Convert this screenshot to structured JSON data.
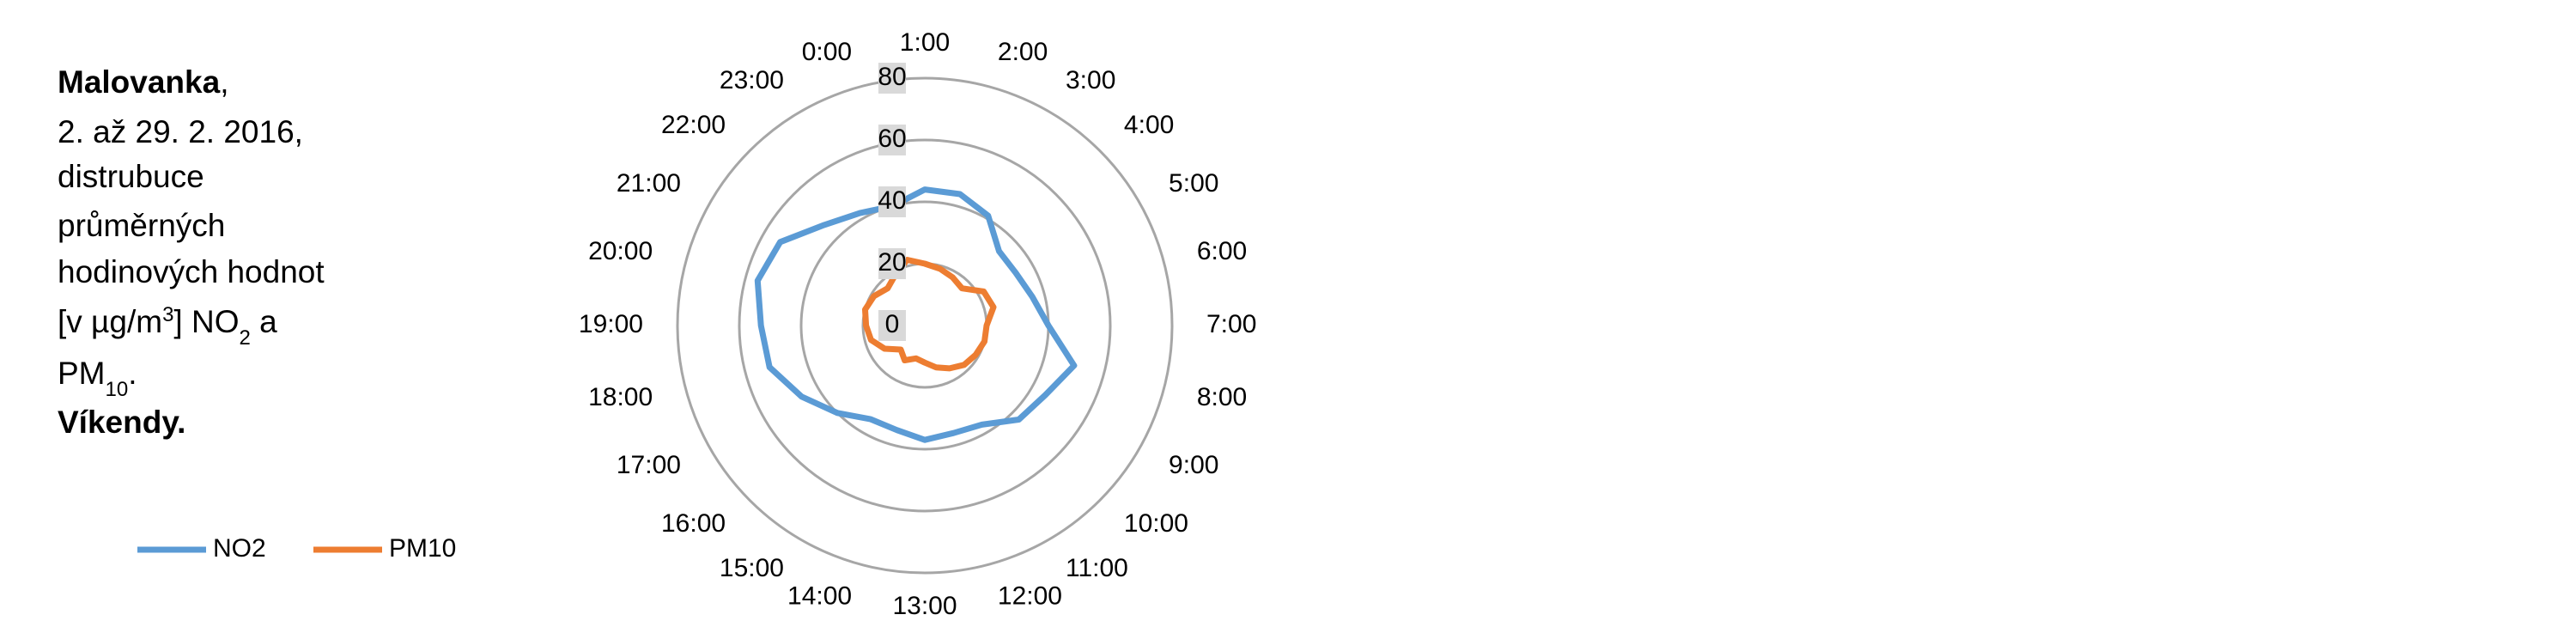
{
  "chart_data": {
    "type": "radar",
    "title": [
      "Malovanka",
      ",",
      "2. až 29. 2. 2016,",
      "distrubuce",
      "průměrných",
      "hodinových hodnot",
      "[v µg/m",
      "3",
      "] NO",
      "2",
      " a",
      "PM",
      "10",
      ".",
      "Víkendy."
    ],
    "categories": [
      "1:00",
      "2:00",
      "3:00",
      "4:00",
      "5:00",
      "6:00",
      "7:00",
      "8:00",
      "9:00",
      "10:00",
      "11:00",
      "12:00",
      "13:00",
      "14:00",
      "15:00",
      "16:00",
      "17:00",
      "18:00",
      "19:00",
      "20:00",
      "21:00",
      "22:00",
      "23:00",
      "0:00"
    ],
    "series": [
      {
        "name": "NO2",
        "color": "#5b9bd5",
        "values": [
          44,
          44,
          41,
          34,
          34,
          36,
          40,
          50,
          45,
          43,
          37,
          36,
          37,
          35,
          35,
          40,
          46,
          52,
          53,
          56,
          54,
          46,
          42,
          40
        ]
      },
      {
        "name": "PM10",
        "color": "#ed7d31",
        "values": [
          20,
          19,
          18,
          17,
          22,
          23,
          20,
          20,
          19,
          18,
          16,
          14,
          12,
          11,
          13,
          11,
          15,
          18,
          19,
          20,
          19,
          17,
          19,
          22
        ]
      }
    ],
    "ylim": [
      0,
      80
    ],
    "yticks": [
      0,
      20,
      40,
      60,
      80
    ],
    "grid": true,
    "legend": "bottom-left"
  }
}
